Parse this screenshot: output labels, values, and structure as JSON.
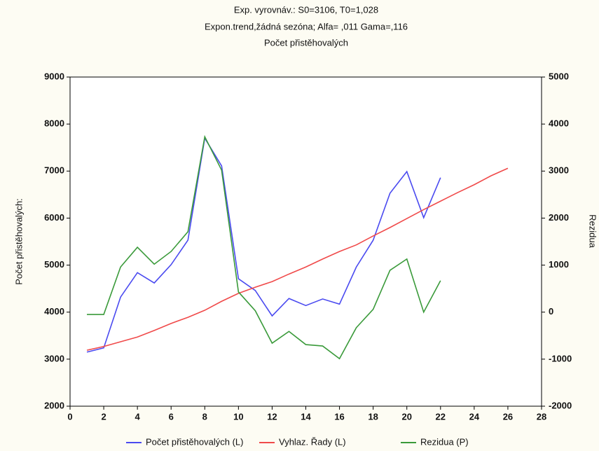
{
  "chart_data": {
    "type": "line",
    "title": "Exp. vyrovnáv.:  S0=3106, T0=1,028",
    "subtitle": "Expon.trend,žádná sezóna; Alfa=  ,011 Gama=,116",
    "subtitle2": "Počet přistěhovalých",
    "ylabel": "Počet přistěhovalých:",
    "y2label": "Rezidua",
    "xlim": [
      0,
      28
    ],
    "xticks": [
      0,
      2,
      4,
      6,
      8,
      10,
      12,
      14,
      16,
      18,
      20,
      22,
      24,
      26,
      28
    ],
    "ylim": [
      2000,
      9000
    ],
    "yticks": [
      2000,
      3000,
      4000,
      5000,
      6000,
      7000,
      8000,
      9000
    ],
    "y2lim": [
      -2000,
      5000
    ],
    "y2ticks": [
      -2000,
      -1000,
      0,
      1000,
      2000,
      3000,
      4000,
      5000
    ],
    "grid": false,
    "legend": "bottom",
    "series": [
      {
        "name": "Počet přistěhovalých (L)",
        "color": "#4a4af0",
        "x": [
          1,
          2,
          3,
          4,
          5,
          6,
          7,
          8,
          9,
          10,
          11,
          12,
          13,
          14,
          15,
          16,
          17,
          18,
          19,
          20,
          21,
          22
        ],
        "values": [
          3150,
          3240,
          4320,
          4840,
          4620,
          5010,
          5530,
          7700,
          7110,
          4710,
          4460,
          3920,
          4290,
          4140,
          4280,
          4170,
          4960,
          5530,
          6530,
          6990,
          6010,
          6860
        ]
      },
      {
        "name": "Vyhlaz. Řady (L)",
        "color": "#f04a4a",
        "x": [
          1,
          2,
          3,
          4,
          5,
          6,
          7,
          8,
          9,
          10,
          11,
          12,
          13,
          14,
          15,
          16,
          17,
          18,
          19,
          20,
          21,
          22,
          23,
          24,
          25,
          26
        ],
        "values": [
          3190,
          3270,
          3370,
          3470,
          3610,
          3760,
          3890,
          4040,
          4230,
          4400,
          4530,
          4650,
          4810,
          4960,
          5130,
          5290,
          5430,
          5620,
          5800,
          5990,
          6180,
          6360,
          6540,
          6710,
          6900,
          7060
        ]
      },
      {
        "name": "Rezidua (P)",
        "color": "#3a9a3a",
        "axis": "y2",
        "x": [
          1,
          2,
          3,
          4,
          5,
          6,
          7,
          8,
          9,
          10,
          11,
          12,
          13,
          14,
          15,
          16,
          17,
          18,
          19,
          20,
          21,
          22
        ],
        "values": [
          -50,
          -50,
          960,
          1380,
          1020,
          1290,
          1710,
          3730,
          3020,
          430,
          30,
          -660,
          -410,
          -690,
          -720,
          -990,
          -330,
          60,
          890,
          1130,
          0,
          670
        ]
      }
    ]
  }
}
